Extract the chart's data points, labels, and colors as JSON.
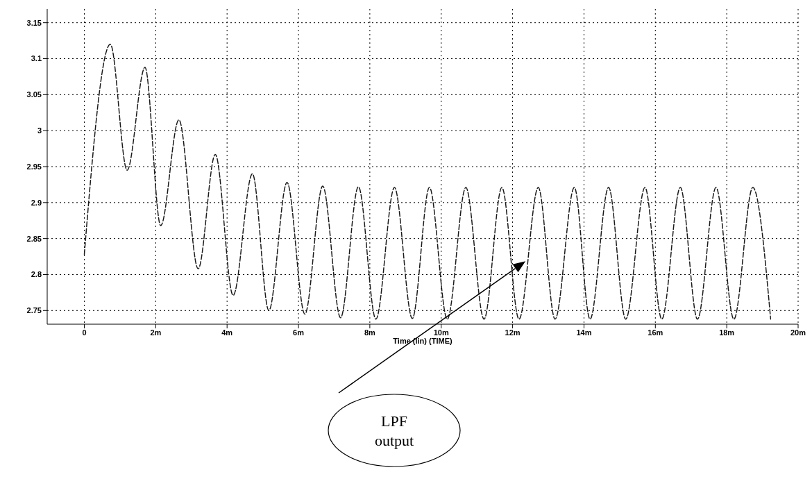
{
  "chart_data": {
    "type": "line",
    "xlabel": "Time (lin) (TIME)",
    "x": [
      0,
      0.73,
      1.2,
      1.7,
      2.14,
      2.65,
      3.19,
      3.67,
      4.17,
      4.71,
      5.17,
      5.68,
      6.18,
      6.68,
      7.18,
      7.68,
      8.17,
      8.69,
      9.19,
      9.67,
      10.17,
      10.69,
      11.2,
      11.7,
      12.18,
      12.72,
      13.19,
      13.73,
      14.17,
      14.69,
      15.17,
      15.71,
      16.18,
      16.7,
      17.18,
      17.7,
      18.2,
      18.73,
      19.23
    ],
    "series": [
      {
        "color": "#1a1a1a",
        "values": [
          2.828,
          3.12,
          2.945,
          3.088,
          2.868,
          3.015,
          2.808,
          2.967,
          2.771,
          2.94,
          2.75,
          2.928,
          2.745,
          2.923,
          2.74,
          2.922,
          2.738,
          2.921,
          2.739,
          2.921,
          2.738,
          2.921,
          2.738,
          2.921,
          2.738,
          2.921,
          2.738,
          2.921,
          2.738,
          2.921,
          2.738,
          2.921,
          2.738,
          2.921,
          2.738,
          2.921,
          2.738,
          2.921,
          2.738
        ]
      }
    ],
    "xlim": [
      -1.04,
      20
    ],
    "xticks": [
      0,
      {
        "value": 2,
        "label": "2m"
      },
      {
        "value": 4,
        "label": "4m"
      },
      {
        "value": 6,
        "label": "6m"
      },
      {
        "value": 8,
        "label": "8m"
      },
      {
        "value": 10,
        "label": "10m"
      },
      {
        "value": 12,
        "label": "12m"
      },
      {
        "value": 14,
        "label": "14m"
      },
      {
        "value": 16,
        "label": "16m"
      },
      {
        "value": 18,
        "label": "18m"
      },
      {
        "value": 20,
        "label": "20m"
      }
    ],
    "ylim": [
      2.731,
      3.169
    ],
    "yticks": [
      2.75,
      2.8,
      2.85,
      2.9,
      2.95,
      3,
      3.05,
      3.1,
      3.15
    ],
    "grid": true,
    "marker": "none",
    "line_style": "dashed",
    "annotations": [
      "LPF output"
    ]
  }
}
